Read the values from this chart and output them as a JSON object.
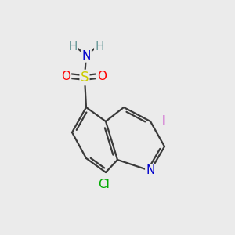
{
  "bg_color": "#ebebeb",
  "bond_color": "#3a3a3a",
  "bond_width": 1.6,
  "atom_colors": {
    "N": "#0000cc",
    "S": "#cccc00",
    "O": "#ff0000",
    "I": "#bb00bb",
    "Cl": "#00aa00",
    "H": "#6a9a9a",
    "C": "#3a3a3a"
  },
  "font_size": 11
}
